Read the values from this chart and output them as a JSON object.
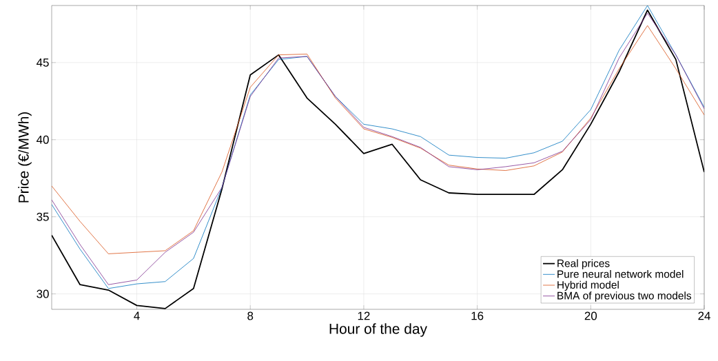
{
  "chart_data": {
    "type": "line",
    "xlabel": "Hour of the day",
    "ylabel": "Price (€/MWh)",
    "x": [
      1,
      2,
      3,
      4,
      5,
      6,
      7,
      8,
      9,
      10,
      11,
      12,
      13,
      14,
      15,
      16,
      17,
      18,
      19,
      20,
      21,
      22,
      23,
      24
    ],
    "xlim": [
      1,
      24
    ],
    "xticks": [
      4,
      8,
      12,
      16,
      20,
      24
    ],
    "ylim": [
      29,
      48.7
    ],
    "yticks": [
      30,
      35,
      40,
      45
    ],
    "grid": true,
    "legend": "bottom right",
    "series": [
      {
        "name": "Real prices",
        "color": "#000000",
        "values": [
          33.8,
          30.6,
          30.25,
          29.25,
          29.05,
          30.35,
          36.8,
          44.2,
          45.5,
          42.7,
          41.0,
          39.1,
          39.7,
          37.4,
          36.55,
          36.45,
          36.45,
          36.45,
          38.05,
          41.0,
          44.4,
          48.4,
          45.2,
          37.9
        ]
      },
      {
        "name": "Pure neural network model",
        "color": "#0072bd",
        "values": [
          35.8,
          32.9,
          30.35,
          30.65,
          30.8,
          32.3,
          36.9,
          42.9,
          45.2,
          45.4,
          42.8,
          41.0,
          40.7,
          40.2,
          39.0,
          38.85,
          38.8,
          39.15,
          39.9,
          41.95,
          45.8,
          48.7,
          45.5,
          42.1
        ]
      },
      {
        "name": "Hybrid model",
        "color": "#d95319",
        "values": [
          37.0,
          34.7,
          32.6,
          32.7,
          32.8,
          34.1,
          37.9,
          43.4,
          45.5,
          45.55,
          42.7,
          40.7,
          40.15,
          39.45,
          38.35,
          38.1,
          38.0,
          38.3,
          39.2,
          41.4,
          44.6,
          47.4,
          44.6,
          41.6
        ]
      },
      {
        "name": "BMA of previous two models",
        "color": "#7e2f8e",
        "values": [
          36.1,
          33.2,
          30.6,
          30.9,
          32.7,
          34.0,
          36.9,
          42.8,
          45.3,
          45.4,
          42.8,
          40.8,
          40.2,
          39.5,
          38.25,
          38.05,
          38.25,
          38.5,
          39.25,
          41.3,
          45.3,
          48.2,
          45.5,
          42.0
        ]
      }
    ]
  }
}
